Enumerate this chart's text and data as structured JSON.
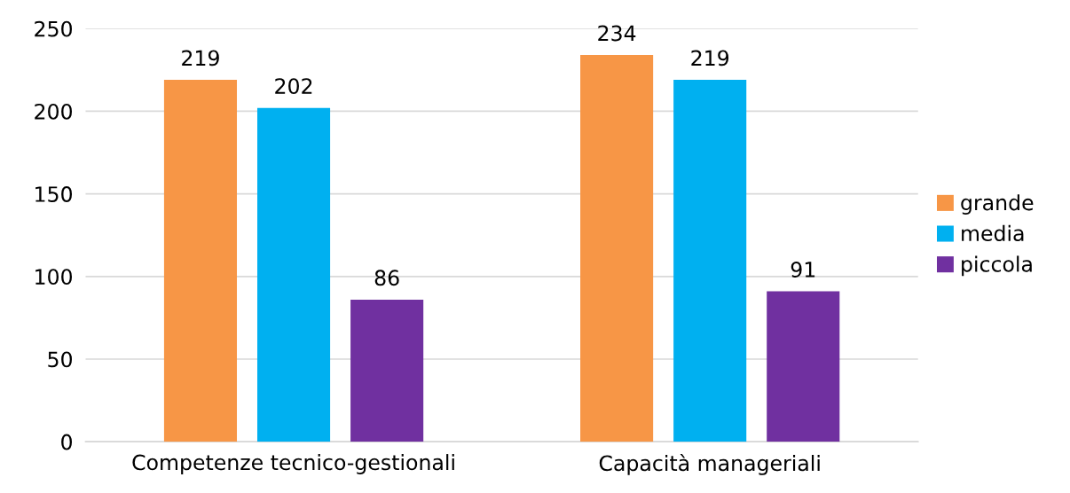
{
  "chart_data": {
    "type": "bar",
    "categories": [
      "Competenze tecnico-gestionali",
      "Capacità manageriali"
    ],
    "series": [
      {
        "name": "grande",
        "color": "#f79646",
        "values": [
          219,
          234
        ]
      },
      {
        "name": "media",
        "color": "#00b0f0",
        "values": [
          202,
          219
        ]
      },
      {
        "name": "piccola",
        "color": "#7030a0",
        "values": [
          86,
          91
        ]
      }
    ],
    "ylim": [
      0,
      250
    ],
    "yticks": [
      0,
      50,
      100,
      150,
      200,
      250
    ],
    "grid": "y",
    "legend": "right",
    "data_labels": true
  }
}
